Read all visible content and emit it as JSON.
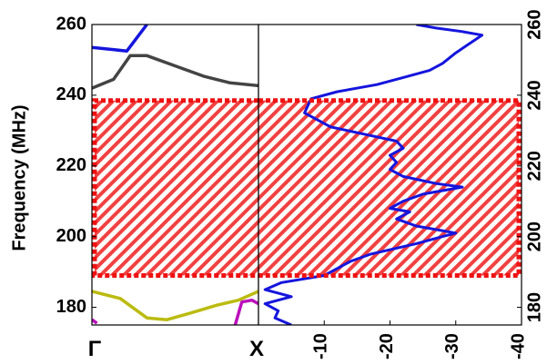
{
  "chart_data": [
    {
      "type": "line",
      "panel": "band-structure",
      "ylabel": "Frequency (MHz)",
      "ylim": [
        175,
        260
      ],
      "yticks": [
        180,
        200,
        220,
        240,
        260
      ],
      "x_tick_labels": [
        "Γ",
        "X"
      ],
      "xlim": [
        0,
        1
      ],
      "bandgap_shading": {
        "y_range": [
          189,
          238.5
        ],
        "color": "#ee1111"
      },
      "series": [
        {
          "color": "#1515dd",
          "x": [
            0,
            0.21,
            0.33
          ],
          "y": [
            253.5,
            252.5,
            260
          ]
        },
        {
          "color": "#444444",
          "x": [
            0,
            0.13,
            0.23,
            0.33,
            0.5,
            0.67,
            0.83,
            1.0
          ],
          "y": [
            242,
            244.5,
            251.2,
            251.2,
            248.3,
            245.4,
            243.5,
            242.7
          ]
        },
        {
          "color": "#bbbb11",
          "x": [
            0,
            0.17,
            0.33,
            0.45,
            0.6,
            0.75,
            0.88,
            1.0
          ],
          "y": [
            184.5,
            182.5,
            177,
            176.5,
            178.5,
            180.6,
            182,
            184.5
          ]
        },
        {
          "color": "#bb11bb",
          "x": [
            0.86,
            0.9,
            0.96,
            1.0
          ],
          "y": [
            175,
            181.5,
            182,
            181
          ]
        },
        {
          "color": "#bb11bb",
          "x": [
            0,
            0.03
          ],
          "y": [
            176.5,
            175.5
          ]
        }
      ]
    },
    {
      "type": "line",
      "panel": "transmission",
      "ylim": [
        175,
        260
      ],
      "yticks": [
        180,
        200,
        220,
        240,
        260
      ],
      "xlim": [
        0,
        -40
      ],
      "xticks": [
        -10,
        -20,
        -30,
        -40
      ],
      "bandgap_shading": {
        "y_range": [
          189,
          238.5
        ],
        "color": "#ee1111"
      },
      "series": [
        {
          "color": "#1515dd",
          "x": [
            -5,
            -2.5,
            -3,
            -1,
            -5,
            -1,
            -3.5,
            -10,
            -14,
            -17,
            -24,
            -28,
            -30,
            -24,
            -21,
            -23,
            -20,
            -22,
            -25,
            -31,
            -27,
            -22,
            -20,
            -21,
            -20,
            -22,
            -21,
            -16,
            -11,
            -7,
            -8,
            -12,
            -18,
            -22,
            -26,
            -28,
            -30,
            -34,
            -31,
            -27,
            -24
          ],
          "y": [
            175,
            177,
            179,
            181,
            183,
            185,
            187,
            189,
            193,
            195,
            198,
            200,
            201,
            203,
            205,
            207,
            208,
            210,
            212,
            214,
            215,
            217,
            219,
            221,
            223,
            225,
            227,
            229,
            231,
            235,
            239,
            241,
            243,
            245,
            247,
            249,
            252,
            257,
            258,
            259,
            260
          ]
        }
      ]
    }
  ]
}
